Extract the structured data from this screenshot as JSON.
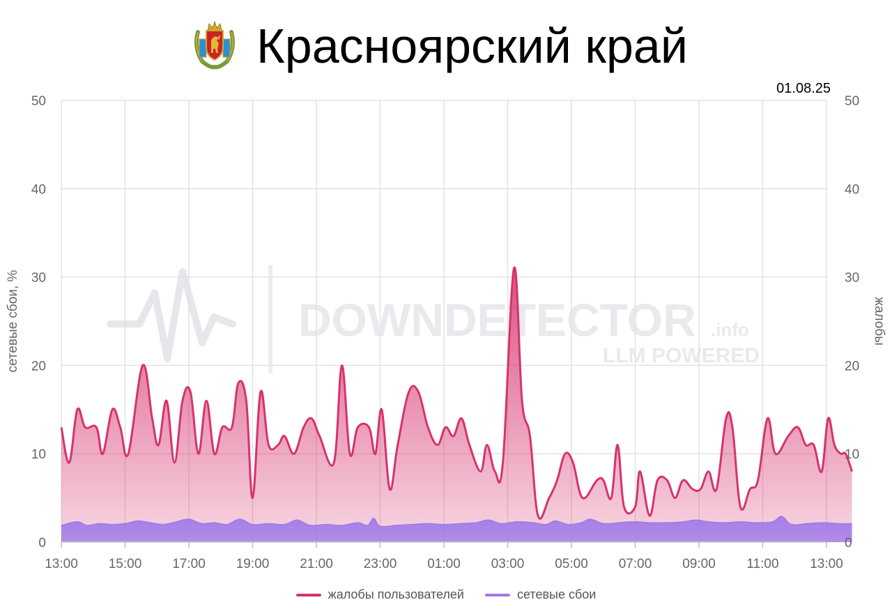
{
  "page": {
    "title": "Красноярский край",
    "date": "01.08.25",
    "watermark": {
      "main": "DOWNDETECTOR",
      "suffix": ".info",
      "sub": "LLM POWERED"
    }
  },
  "colors": {
    "complaints": "#d6336c",
    "outages": "#a07ae8",
    "grid": "#e2e2e2",
    "axis_text": "#666666"
  },
  "chart_data": {
    "type": "area",
    "title": "",
    "xlabel": "",
    "ylabel_left": "сетевые сбои, %",
    "ylabel_right": "жалобы",
    "ylim_left": [
      0,
      50
    ],
    "ylim_right": [
      0,
      50
    ],
    "yticks": [
      0,
      10,
      20,
      30,
      40,
      50
    ],
    "x_range_hours": [
      13,
      37
    ],
    "xtick_labels": [
      "13:00",
      "15:00",
      "17:00",
      "19:00",
      "21:00",
      "23:00",
      "01:00",
      "03:00",
      "05:00",
      "07:00",
      "09:00",
      "11:00",
      "13:00"
    ],
    "legend_position": "bottom-center",
    "series": [
      {
        "name": "жалобы пользователей",
        "axis": "right",
        "points": [
          [
            13.0,
            13
          ],
          [
            13.25,
            9
          ],
          [
            13.5,
            15
          ],
          [
            13.75,
            13
          ],
          [
            14.1,
            13
          ],
          [
            14.3,
            10
          ],
          [
            14.6,
            15
          ],
          [
            14.85,
            13
          ],
          [
            15.1,
            10
          ],
          [
            15.55,
            20
          ],
          [
            15.85,
            14
          ],
          [
            16.05,
            11
          ],
          [
            16.3,
            16
          ],
          [
            16.55,
            9
          ],
          [
            16.8,
            16
          ],
          [
            17.05,
            17
          ],
          [
            17.3,
            10
          ],
          [
            17.55,
            16
          ],
          [
            17.8,
            10
          ],
          [
            18.05,
            13
          ],
          [
            18.35,
            13
          ],
          [
            18.55,
            18
          ],
          [
            18.8,
            16
          ],
          [
            19.0,
            5
          ],
          [
            19.25,
            17
          ],
          [
            19.5,
            11
          ],
          [
            19.8,
            11
          ],
          [
            20.0,
            12
          ],
          [
            20.3,
            10
          ],
          [
            20.6,
            13
          ],
          [
            20.85,
            14
          ],
          [
            21.1,
            12
          ],
          [
            21.55,
            9
          ],
          [
            21.8,
            20
          ],
          [
            22.05,
            10
          ],
          [
            22.3,
            13
          ],
          [
            22.65,
            13
          ],
          [
            22.85,
            10
          ],
          [
            23.05,
            15
          ],
          [
            23.3,
            6
          ],
          [
            23.55,
            11
          ],
          [
            23.9,
            17
          ],
          [
            24.2,
            17
          ],
          [
            24.5,
            13
          ],
          [
            24.8,
            11
          ],
          [
            25.05,
            13
          ],
          [
            25.3,
            12
          ],
          [
            25.55,
            14
          ],
          [
            25.8,
            11
          ],
          [
            26.15,
            8
          ],
          [
            26.35,
            11
          ],
          [
            26.6,
            8
          ],
          [
            26.85,
            9
          ],
          [
            27.2,
            31
          ],
          [
            27.45,
            16
          ],
          [
            27.7,
            12
          ],
          [
            27.95,
            3
          ],
          [
            28.3,
            5
          ],
          [
            28.55,
            7
          ],
          [
            28.8,
            10
          ],
          [
            29.05,
            9
          ],
          [
            29.35,
            5
          ],
          [
            29.8,
            7
          ],
          [
            30.0,
            7
          ],
          [
            30.25,
            5
          ],
          [
            30.45,
            11
          ],
          [
            30.65,
            4
          ],
          [
            31.0,
            4
          ],
          [
            31.15,
            8
          ],
          [
            31.45,
            3
          ],
          [
            31.7,
            7
          ],
          [
            32.0,
            7
          ],
          [
            32.25,
            5
          ],
          [
            32.5,
            7
          ],
          [
            32.8,
            6
          ],
          [
            33.05,
            6
          ],
          [
            33.3,
            8
          ],
          [
            33.55,
            6
          ],
          [
            33.85,
            14
          ],
          [
            34.05,
            13
          ],
          [
            34.3,
            4
          ],
          [
            34.6,
            6
          ],
          [
            34.85,
            7
          ],
          [
            35.15,
            14
          ],
          [
            35.4,
            10
          ],
          [
            35.8,
            12
          ],
          [
            36.1,
            13
          ],
          [
            36.35,
            11
          ],
          [
            36.6,
            11
          ],
          [
            36.85,
            8
          ],
          [
            37.05,
            14
          ],
          [
            37.25,
            11
          ],
          [
            37.45,
            10
          ],
          [
            37.6,
            10
          ],
          [
            37.8,
            8
          ]
        ]
      },
      {
        "name": "сетевые сбои",
        "axis": "left",
        "points": [
          [
            13.0,
            1.9
          ],
          [
            13.5,
            2.3
          ],
          [
            13.8,
            1.9
          ],
          [
            14.2,
            2.1
          ],
          [
            14.6,
            2.0
          ],
          [
            15.0,
            2.1
          ],
          [
            15.4,
            2.4
          ],
          [
            15.8,
            2.2
          ],
          [
            16.2,
            2.0
          ],
          [
            16.6,
            2.3
          ],
          [
            17.0,
            2.6
          ],
          [
            17.4,
            2.1
          ],
          [
            17.8,
            2.2
          ],
          [
            18.2,
            2.0
          ],
          [
            18.6,
            2.6
          ],
          [
            19.0,
            2.0
          ],
          [
            19.5,
            2.1
          ],
          [
            20.0,
            2.0
          ],
          [
            20.4,
            2.5
          ],
          [
            20.8,
            1.9
          ],
          [
            21.3,
            2.0
          ],
          [
            21.8,
            1.9
          ],
          [
            22.3,
            2.2
          ],
          [
            22.6,
            1.9
          ],
          [
            22.8,
            2.7
          ],
          [
            23.0,
            1.8
          ],
          [
            23.5,
            1.9
          ],
          [
            24.0,
            2.0
          ],
          [
            24.5,
            2.1
          ],
          [
            25.0,
            2.0
          ],
          [
            25.5,
            2.1
          ],
          [
            26.0,
            2.2
          ],
          [
            26.4,
            2.5
          ],
          [
            26.8,
            2.1
          ],
          [
            27.3,
            2.3
          ],
          [
            27.8,
            2.2
          ],
          [
            28.2,
            2.0
          ],
          [
            28.5,
            2.4
          ],
          [
            28.9,
            2.0
          ],
          [
            29.3,
            2.2
          ],
          [
            29.6,
            2.6
          ],
          [
            30.0,
            2.1
          ],
          [
            30.5,
            2.2
          ],
          [
            31.0,
            2.3
          ],
          [
            31.5,
            2.2
          ],
          [
            32.0,
            2.2
          ],
          [
            32.5,
            2.3
          ],
          [
            32.9,
            2.5
          ],
          [
            33.3,
            2.3
          ],
          [
            33.8,
            2.2
          ],
          [
            34.3,
            2.3
          ],
          [
            34.8,
            2.2
          ],
          [
            35.3,
            2.3
          ],
          [
            35.6,
            2.9
          ],
          [
            35.9,
            2.0
          ],
          [
            36.4,
            2.1
          ],
          [
            36.9,
            2.2
          ],
          [
            37.4,
            2.1
          ],
          [
            37.8,
            2.1
          ]
        ]
      }
    ]
  }
}
